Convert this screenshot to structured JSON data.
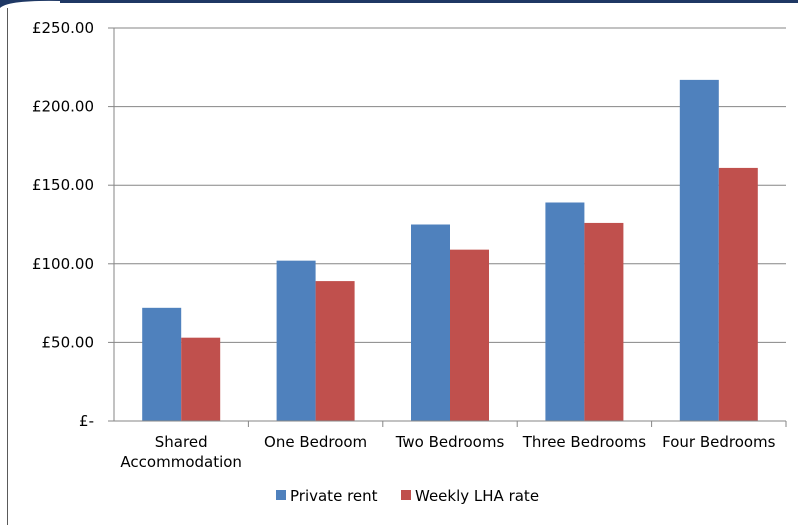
{
  "chart_data": {
    "type": "bar",
    "categories": [
      [
        "Shared",
        "Accommodation"
      ],
      [
        "One Bedroom"
      ],
      [
        "Two Bedrooms"
      ],
      [
        "Three Bedrooms"
      ],
      [
        "Four Bedrooms"
      ]
    ],
    "series": [
      {
        "name": "Private rent",
        "color": "#4f81bd",
        "values": [
          72,
          102,
          125,
          139,
          217
        ]
      },
      {
        "name": "Weekly LHA rate",
        "color": "#c0504d",
        "values": [
          53,
          89,
          109,
          126,
          161
        ]
      }
    ],
    "yticks": [
      "£-",
      "£50.00",
      "£100.00",
      "£150.00",
      "£200.00",
      "£250.00"
    ],
    "ylim": [
      0,
      250
    ],
    "grid": true,
    "legend_position": "bottom"
  },
  "colors": {
    "frame_dark": "#1f3864",
    "grid": "#868686",
    "axis": "#868686"
  }
}
